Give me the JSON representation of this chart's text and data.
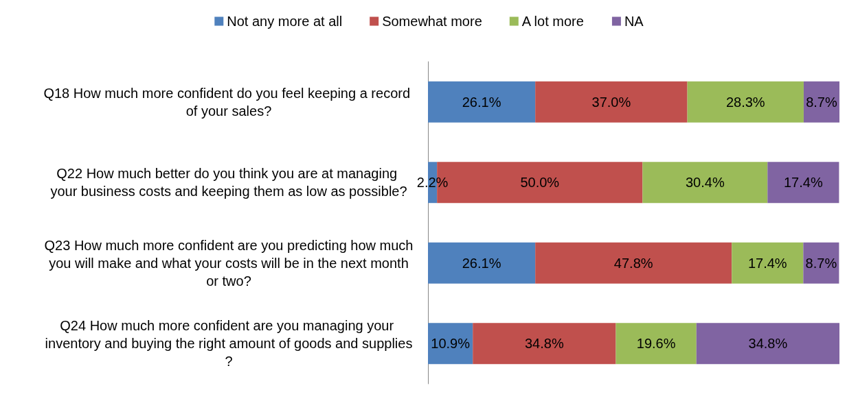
{
  "chart_data": {
    "type": "bar",
    "orientation": "horizontal",
    "stacked": true,
    "legend": "top",
    "categories": [
      "Q18 How much more confident do you feel keeping a record of your sales?",
      "Q22 How much better do you think you are at managing your business costs and keeping them as low as possible?",
      "Q23 How much more confident are you predicting how much you will make and what your costs will be in the next month or two?",
      "Q24 How much more confident are you managing your inventory and buying the right amount of goods and supplies?"
    ],
    "series": [
      {
        "name": "Not any more at all",
        "color": "#4f81bd",
        "values": [
          26.1,
          2.2,
          26.1,
          10.9
        ],
        "value_labels": [
          "26.1%",
          "2.2%",
          "26.1%",
          "10.9%"
        ]
      },
      {
        "name": "Somewhat more",
        "color": "#c0504d",
        "values": [
          37.0,
          50.0,
          47.8,
          34.8
        ],
        "value_labels": [
          "37.0%",
          "50.0%",
          "47.8%",
          "34.8%"
        ]
      },
      {
        "name": "A lot more",
        "color": "#9bbb59",
        "values": [
          28.3,
          30.4,
          17.4,
          19.6
        ],
        "value_labels": [
          "28.3%",
          "30.4%",
          "17.4%",
          "19.6%"
        ]
      },
      {
        "name": "NA",
        "color": "#8064a2",
        "values": [
          8.7,
          17.4,
          8.7,
          34.8
        ],
        "value_labels": [
          "8.7%",
          "17.4%",
          "8.7%",
          "34.8%"
        ]
      }
    ]
  }
}
